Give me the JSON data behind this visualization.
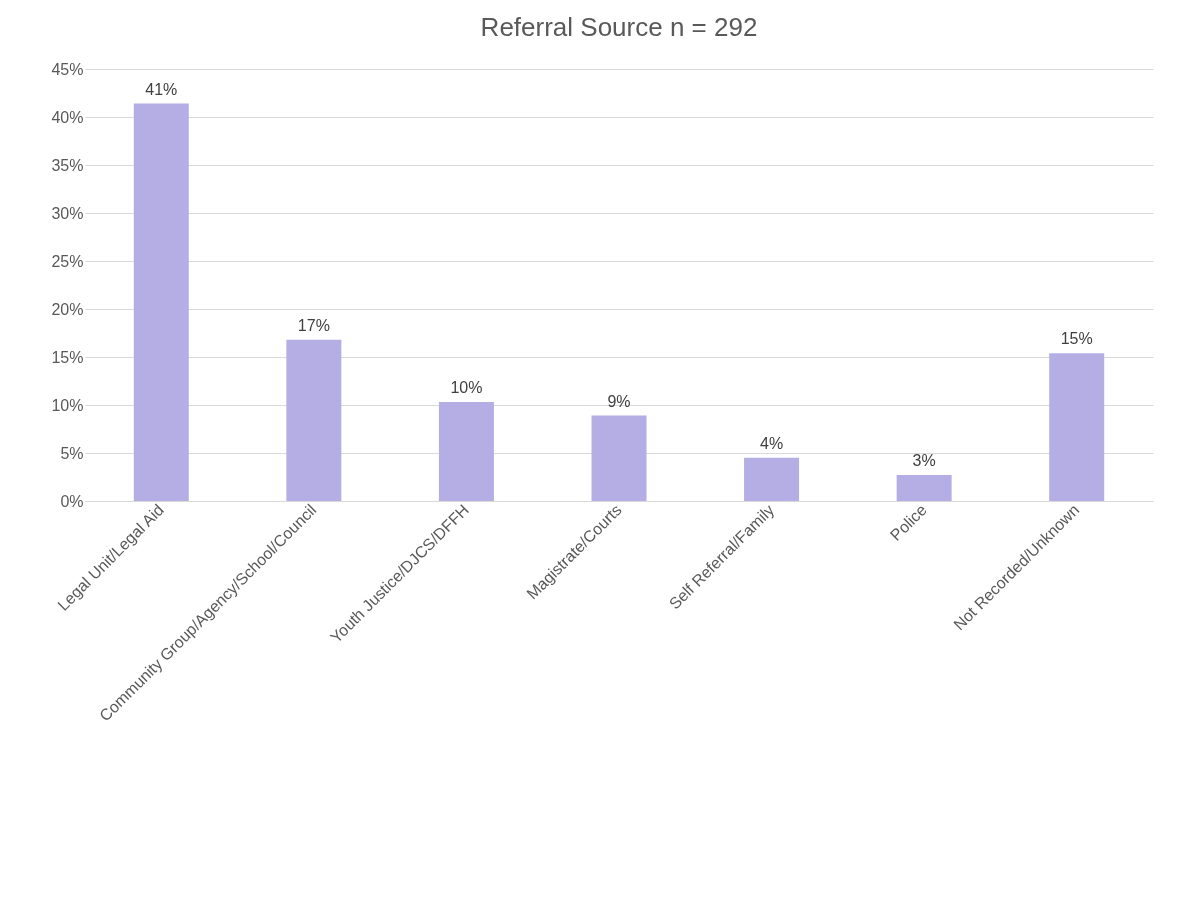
{
  "chart_data": {
    "type": "bar",
    "title": "Referral Source n = 292",
    "categories": [
      "Legal Unit/Legal Aid",
      "Community Group/Agency/School/Council",
      "Youth Justice/DJCS/DFFH",
      "Magistrate/Courts",
      "Self Referral/Family",
      "Police",
      "Not Recorded/Unknown"
    ],
    "values": [
      41.4,
      16.8,
      10.3,
      8.9,
      4.5,
      2.7,
      15.4
    ],
    "value_labels": [
      "41%",
      "17%",
      "10%",
      "9%",
      "4%",
      "3%",
      "15%"
    ],
    "color": "#b4aee4",
    "ylim": [
      0,
      45
    ],
    "yticks": [
      {
        "value": 0,
        "label": "0%"
      },
      {
        "value": 5,
        "label": "5%"
      },
      {
        "value": 10,
        "label": "10%"
      },
      {
        "value": 15,
        "label": "15%"
      },
      {
        "value": 20,
        "label": "20%"
      },
      {
        "value": 25,
        "label": "25%"
      },
      {
        "value": 30,
        "label": "30%"
      },
      {
        "value": 35,
        "label": "35%"
      },
      {
        "value": 40,
        "label": "40%"
      },
      {
        "value": 45,
        "label": "45%"
      }
    ],
    "grid": "y"
  }
}
